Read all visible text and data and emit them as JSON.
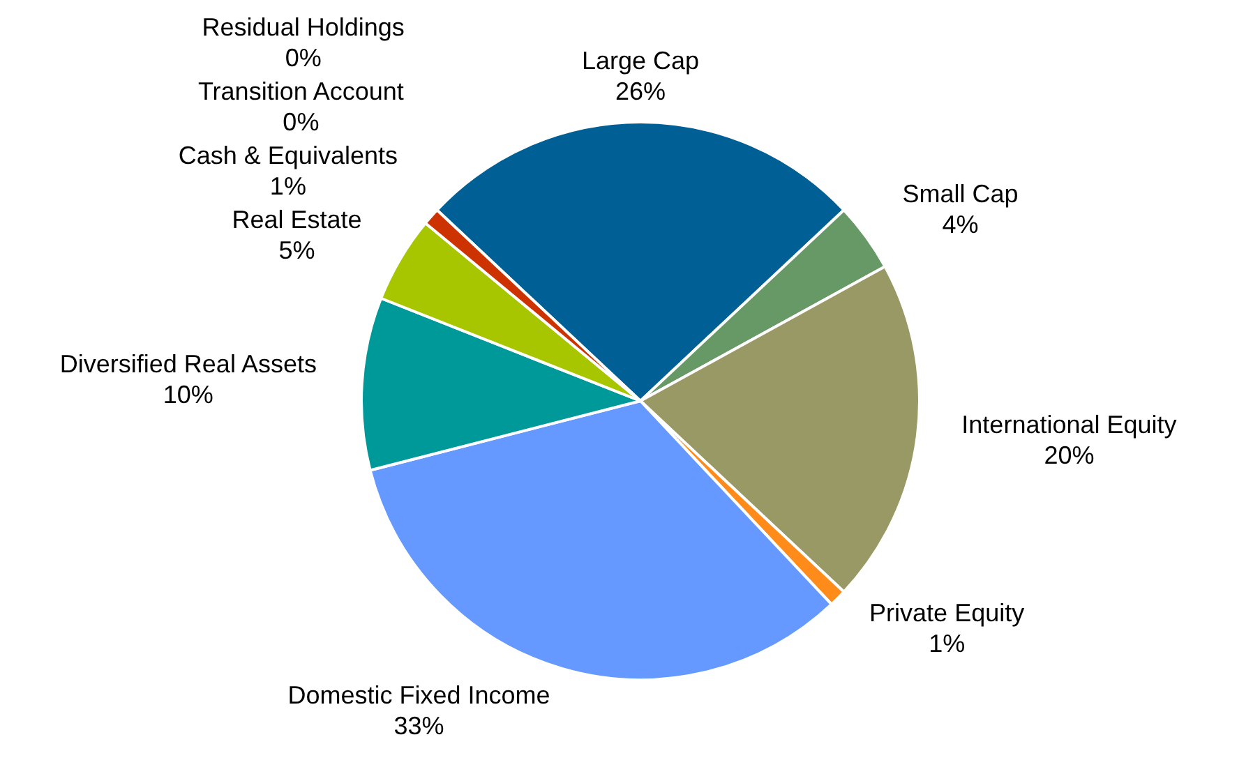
{
  "chart_data": {
    "type": "pie",
    "categories": [
      "Large Cap",
      "Small Cap",
      "International Equity",
      "Private Equity",
      "Domestic Fixed Income",
      "Diversified Real Assets",
      "Real Estate",
      "Cash & Equivalents",
      "Transition Account",
      "Residual Holdings"
    ],
    "values": [
      26,
      4,
      20,
      1,
      33,
      10,
      5,
      1,
      0,
      0
    ],
    "value_labels": [
      "26%",
      "4%",
      "20%",
      "1%",
      "33%",
      "10%",
      "5%",
      "1%",
      "0%",
      "0%"
    ],
    "colors": [
      "#006096",
      "#669966",
      "#999966",
      "#ff8c1a",
      "#6699ff",
      "#009999",
      "#a8c600",
      "#cc3300",
      "#7f7f7f",
      "#404040"
    ],
    "legend": false
  }
}
